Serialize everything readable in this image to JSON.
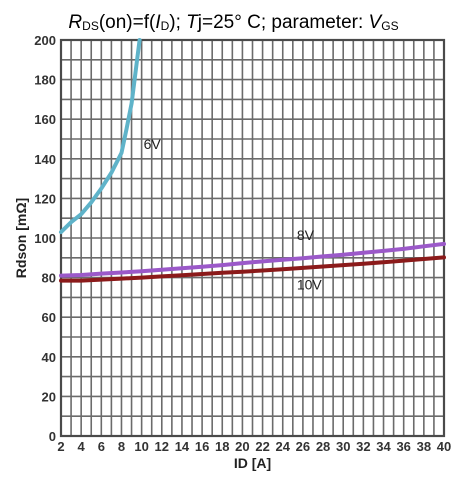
{
  "title": {
    "r_symbol": "R",
    "r_subscript": "DS",
    "mid": "(on)=f(",
    "i_symbol": "I",
    "i_subscript": "D",
    "after_i": "); ",
    "t_symbol": "T",
    "after_t": "j=25° C; parameter: ",
    "v_symbol": "V",
    "v_subscript": "GS"
  },
  "chart_data": {
    "type": "line",
    "title": "RDS(on)=f(ID); Tj=25° C; parameter: VGS",
    "xlabel": "ID [A]",
    "ylabel": "Rdson [mΩ]",
    "xlim": [
      2,
      40
    ],
    "ylim": [
      0,
      200
    ],
    "grid": true,
    "x_ticks": [
      2,
      4,
      6,
      8,
      10,
      12,
      14,
      16,
      18,
      20,
      22,
      24,
      26,
      28,
      30,
      32,
      34,
      36,
      38,
      40
    ],
    "y_ticks": [
      0,
      20,
      40,
      60,
      80,
      100,
      120,
      140,
      160,
      180,
      200
    ],
    "series": [
      {
        "name": "6V",
        "color": "#5fb3c9",
        "x": [
          2,
          3,
          4,
          5,
          6,
          7,
          8,
          8.5,
          9,
          9.3,
          9.6,
          9.8
        ],
        "y": [
          103,
          108,
          112,
          118,
          125,
          133,
          143,
          155,
          168,
          180,
          192,
          200
        ]
      },
      {
        "name": "8V",
        "color": "#9b59c9",
        "x": [
          2,
          4,
          6,
          8,
          10,
          12,
          14,
          16,
          18,
          20,
          22,
          24,
          26,
          28,
          30,
          32,
          34,
          36,
          38,
          40
        ],
        "y": [
          81,
          81.3,
          82,
          82.6,
          83.2,
          84,
          84.7,
          85.5,
          86.3,
          87.3,
          88.2,
          89,
          89.8,
          90.7,
          91.5,
          92.5,
          93.5,
          94.5,
          95.8,
          97
        ]
      },
      {
        "name": "10V",
        "color": "#8b1a1a",
        "x": [
          2,
          4,
          6,
          8,
          10,
          12,
          14,
          16,
          18,
          20,
          22,
          24,
          26,
          28,
          30,
          32,
          34,
          36,
          38,
          40
        ],
        "y": [
          78.5,
          78.5,
          79,
          79.5,
          80,
          80.6,
          81.2,
          81.8,
          82.4,
          83,
          83.6,
          84.2,
          84.9,
          85.6,
          86.3,
          87,
          87.8,
          88.6,
          89.4,
          90.2
        ]
      }
    ],
    "annotations": [
      {
        "text": "6V",
        "x": 10.2,
        "y": 145,
        "series": "6V"
      },
      {
        "text": "8V",
        "x": 25.4,
        "y": 99,
        "series": "8V"
      },
      {
        "text": "10V",
        "x": 25.4,
        "y": 74,
        "series": "10V"
      }
    ]
  }
}
